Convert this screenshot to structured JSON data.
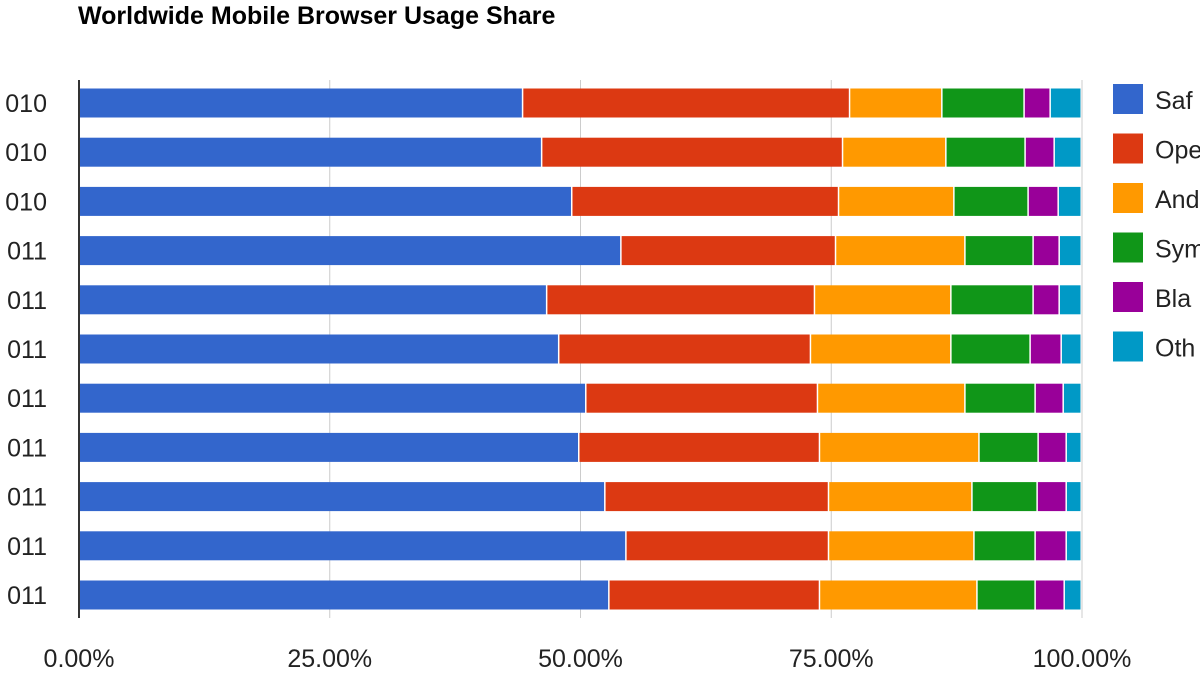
{
  "chart_data": {
    "type": "bar",
    "orientation": "horizontal",
    "stacked": true,
    "title": "Worldwide Mobile Browser Usage Share",
    "categories": [
      "010",
      "010",
      "010",
      "011",
      "011",
      "011",
      "011",
      "011",
      "011",
      "011",
      "011"
    ],
    "xlim": [
      0,
      100
    ],
    "xticks": [
      "0.00%",
      "25.00%",
      "50.00%",
      "75.00%",
      "100.00%"
    ],
    "grid": true,
    "legend_position": "right",
    "series": [
      {
        "name": "Saf",
        "color": "#3366cc",
        "values": [
          44.3,
          46.2,
          49.2,
          54.1,
          46.7,
          47.9,
          50.6,
          49.9,
          52.5,
          54.6,
          52.9
        ]
      },
      {
        "name": "Ope",
        "color": "#dc3912",
        "values": [
          32.6,
          30.0,
          26.6,
          21.4,
          26.7,
          25.1,
          23.1,
          24.0,
          22.3,
          20.2,
          21.0
        ]
      },
      {
        "name": "And",
        "color": "#ff9900",
        "values": [
          9.2,
          10.3,
          11.5,
          12.9,
          13.6,
          14.0,
          14.7,
          15.9,
          14.3,
          14.5,
          15.7
        ]
      },
      {
        "name": "Sym",
        "color": "#109618",
        "values": [
          8.2,
          7.9,
          7.4,
          6.8,
          8.2,
          7.9,
          7.0,
          5.9,
          6.5,
          6.1,
          5.8
        ]
      },
      {
        "name": "Bla",
        "color": "#990099",
        "values": [
          2.6,
          2.9,
          3.0,
          2.6,
          2.6,
          3.1,
          2.8,
          2.8,
          2.9,
          3.1,
          2.9
        ]
      },
      {
        "name": "Oth",
        "color": "#0099c6",
        "values": [
          3.1,
          2.7,
          2.3,
          2.2,
          2.2,
          2.0,
          1.8,
          1.5,
          1.5,
          1.5,
          1.7
        ]
      }
    ]
  }
}
